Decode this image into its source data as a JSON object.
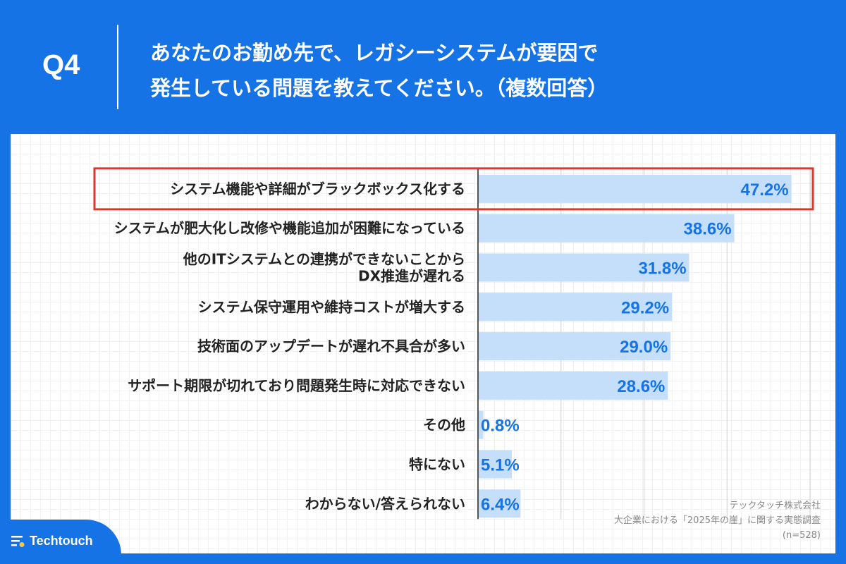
{
  "header": {
    "question_no": "Q4",
    "title_line1": "あなたのお勤め先で、レガシーシステムが要因で",
    "title_line2": "発生している問題を教えてください。（複数回答）"
  },
  "colors": {
    "brand": "#1673e6",
    "bar": "#c5dffb",
    "value_text": "#1673e6",
    "highlight": "#e0352b"
  },
  "chart_data": {
    "type": "bar",
    "orientation": "horizontal",
    "categories": [
      "システム機能や詳細がブラックボックス化する",
      "システムが肥大化し改修や機能追加が困難になっている",
      "他のITシステムとの連携ができないことから\nDX推進が遅れる",
      "システム保守運用や維持コストが増大する",
      "技術面のアップデートが遅れ不具合が多い",
      "サポート期限が切れており問題発生時に対応できない",
      "その他",
      "特にない",
      "わからない/答えられない"
    ],
    "values": [
      47.2,
      38.6,
      31.8,
      29.2,
      29.0,
      28.6,
      0.8,
      5.1,
      6.4
    ],
    "value_labels": [
      "47.2%",
      "38.6%",
      "31.8%",
      "29.2%",
      "29.0%",
      "28.6%",
      "0.8%",
      "5.1%",
      "6.4%"
    ],
    "xlim": [
      0,
      50
    ],
    "grid": true,
    "highlighted_index": 0
  },
  "footer": {
    "brand": "Techtouch",
    "source_company": "テックタッチ株式会社",
    "source_survey": "大企業における「2025年の崖」に関する実態調査",
    "sample": "(n=528)"
  }
}
